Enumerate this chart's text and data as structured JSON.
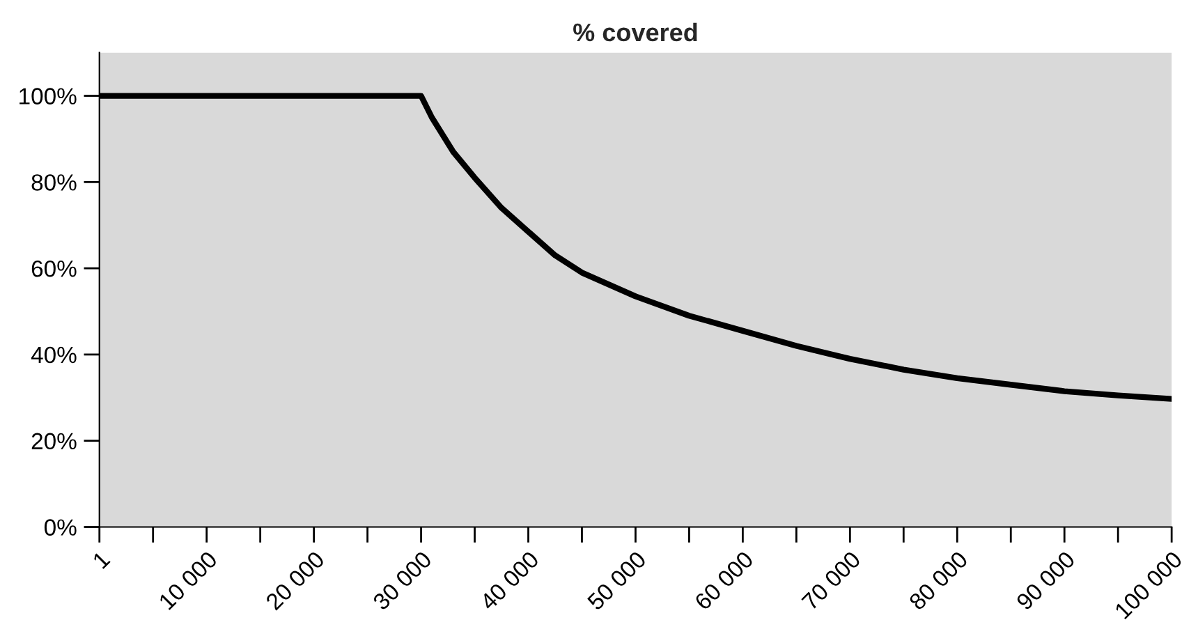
{
  "chart_data": {
    "type": "line",
    "title": "% covered",
    "x": [
      1,
      30000,
      31000,
      32000,
      33000,
      35000,
      37500,
      40000,
      42500,
      45000,
      50000,
      55000,
      60000,
      65000,
      70000,
      75000,
      80000,
      85000,
      90000,
      95000,
      100000
    ],
    "series": [
      {
        "color": "#000000",
        "values": [
          100,
          100,
          95,
          91,
          87,
          81,
          74,
          68.5,
          63,
          59,
          53.5,
          49,
          45.5,
          42,
          39,
          36.5,
          34.5,
          33,
          31.5,
          30.5,
          29.7
        ]
      }
    ],
    "xlim": [
      1,
      100000
    ],
    "xticks": [
      1,
      {
        "value": 5000,
        "label": null
      },
      {
        "value": 10000,
        "label": "10 000"
      },
      {
        "value": 15000,
        "label": null
      },
      {
        "value": 20000,
        "label": "20 000"
      },
      {
        "value": 25000,
        "label": null
      },
      {
        "value": 30000,
        "label": "30 000"
      },
      {
        "value": 35000,
        "label": null
      },
      {
        "value": 40000,
        "label": "40 000"
      },
      {
        "value": 45000,
        "label": null
      },
      {
        "value": 50000,
        "label": "50 000"
      },
      {
        "value": 55000,
        "label": null
      },
      {
        "value": 60000,
        "label": "60 000"
      },
      {
        "value": 65000,
        "label": null
      },
      {
        "value": 70000,
        "label": "70 000"
      },
      {
        "value": 75000,
        "label": null
      },
      {
        "value": 80000,
        "label": "80 000"
      },
      {
        "value": 85000,
        "label": null
      },
      {
        "value": 90000,
        "label": "90 000"
      },
      {
        "value": 95000,
        "label": null
      },
      {
        "value": 100000,
        "label": "100 000"
      }
    ],
    "ylim": [
      0,
      110
    ],
    "yticks": [
      {
        "value": 0,
        "label": "0%"
      },
      {
        "value": 20,
        "label": "20%"
      },
      {
        "value": 40,
        "label": "40%"
      },
      {
        "value": 60,
        "label": "60%"
      },
      {
        "value": 80,
        "label": "80%"
      },
      {
        "value": 100,
        "label": "100%"
      }
    ],
    "grid": false,
    "legend": false,
    "marker": "none",
    "line_style": "solid"
  }
}
